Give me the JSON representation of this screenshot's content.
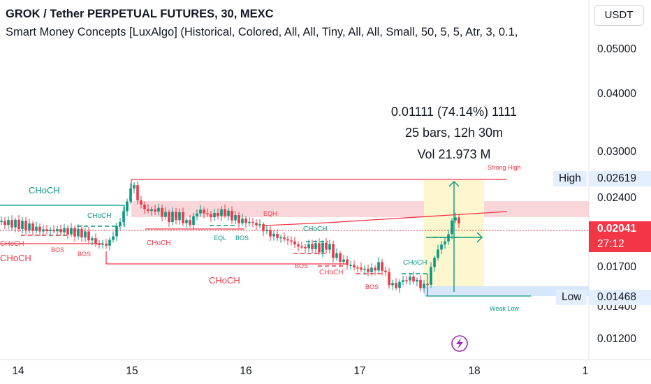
{
  "header": {
    "title": "GROK / Tether PERPETUAL FUTURES, 30, MEXC",
    "indicator": "Smart Money Concepts [LuxAlgo] (Historical, Colored, All, All, Tiny, All, All, Small, 50, 5, 5, Atr, 3, 0.1,",
    "currency": "USDT"
  },
  "price_axis": {
    "ticks": [
      "0.05000",
      "0.04000",
      "0.03000",
      "0.02400",
      "0.01700",
      "0.01400",
      "0.01200"
    ]
  },
  "time_axis": {
    "ticks": [
      "14",
      "15",
      "16",
      "17",
      "18",
      "1"
    ]
  },
  "tags": {
    "high_label": "High",
    "high_value": "0.02619",
    "low_label": "Low",
    "low_value": "0.01468",
    "last_price": "0.02041",
    "countdown": "27:12"
  },
  "measure": {
    "change": "0.01111 (74.14%) 1111",
    "bars": "25 bars, 12h 30m",
    "volume": "Vol 21.973 M"
  },
  "annotations": {
    "choch": "CHoCH",
    "bos": "BOS",
    "eqh": "EQH",
    "eql": "EQL",
    "strong_high": "Strong High",
    "weak_low": "Weak Low"
  },
  "colors": {
    "bull": "#089981",
    "bear": "#f23645",
    "zone_red": "#f7c5c9",
    "zone_yellow": "#fdf6cf",
    "zone_blue": "#d6e6fb",
    "tag_blue": "#e3effd"
  },
  "icons": [
    "lightning-icon"
  ]
}
